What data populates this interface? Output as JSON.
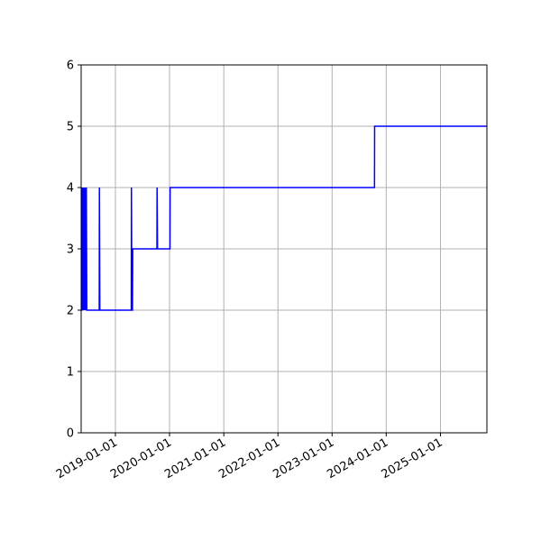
{
  "chart_data": {
    "type": "line",
    "title": "",
    "xlabel": "",
    "ylabel": "",
    "x_axis_type": "date",
    "xlim": [
      "2018-05-15",
      "2025-11-10"
    ],
    "ylim": [
      0,
      6
    ],
    "grid": true,
    "x_ticks": [
      "2019-01-01",
      "2020-01-01",
      "2021-01-01",
      "2022-01-01",
      "2023-01-01",
      "2024-01-01",
      "2025-01-01"
    ],
    "y_ticks": [
      0,
      1,
      2,
      3,
      4,
      5,
      6
    ],
    "series": [
      {
        "color": "#0000ff",
        "x": [
          "2018-05-15",
          "2018-05-20",
          "2018-05-21",
          "2018-05-28",
          "2018-05-29",
          "2018-06-02",
          "2018-06-03",
          "2018-06-07",
          "2018-06-08",
          "2018-06-14",
          "2018-06-15",
          "2018-06-18",
          "2018-06-19",
          "2018-06-22",
          "2018-09-14",
          "2018-09-15",
          "2018-09-18",
          "2019-04-18",
          "2019-04-19",
          "2019-04-22",
          "2019-04-26",
          "2019-04-28",
          "2019-10-08",
          "2019-10-09",
          "2019-10-12",
          "2020-01-04",
          "2020-01-05",
          "2023-10-14",
          "2023-10-15",
          "2025-11-10"
        ],
        "y": [
          2,
          2,
          4,
          2,
          4,
          2,
          4,
          2,
          4,
          2,
          4,
          2,
          4,
          2,
          2,
          4,
          2,
          2,
          4,
          2,
          2,
          3,
          3,
          4,
          3,
          3,
          4,
          4,
          5,
          5
        ]
      }
    ]
  }
}
